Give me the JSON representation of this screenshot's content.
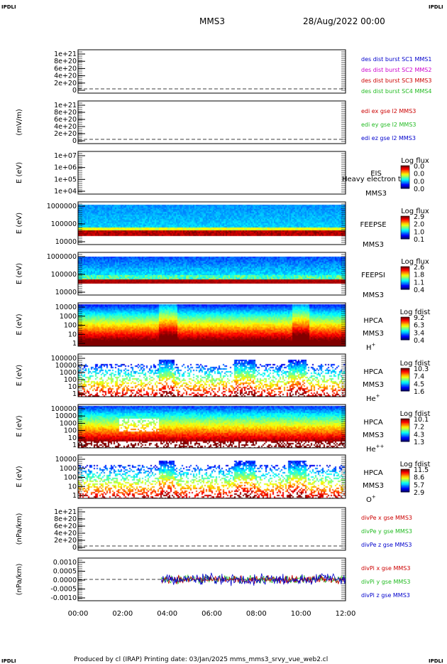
{
  "corner_marks": {
    "top_left": "IPDLI",
    "top_right": "IPDLI",
    "bottom_left": "IPDLI",
    "bottom_right": "IPDLI"
  },
  "header": {
    "spacecraft": "MMS3",
    "date": "28/Aug/2022 00:00"
  },
  "footer": {
    "text": "Produced by cl (IRAP)   Printing date: 03/Jan/2025   mms_mms3_srvy_vue_web2.cl"
  },
  "colors": {
    "red": "#cc0000",
    "green": "#22bb22",
    "blue": "#0000cc",
    "magenta": "#cc00cc",
    "accent": "#000080"
  },
  "chart_data": {
    "type": "stacked-panels",
    "x_axis": {
      "ticks": [
        "00:00",
        "02:00",
        "04:00",
        "06:00",
        "08:00",
        "10:00",
        "12:00"
      ],
      "range": [
        "00:00",
        "12:00"
      ]
    },
    "panels": [
      {
        "id": "p1",
        "kind": "line",
        "ylabel": "",
        "ytick_labels": [
          "1e+21",
          "8e+20",
          "6e+20",
          "4e+20",
          "2e+20",
          "0"
        ],
        "zero_dashed": true,
        "legend": [
          {
            "text": "des dist burst SC1 MMS1",
            "color": "#0000cc"
          },
          {
            "text": "des dist burst SC2 MMS2",
            "color": "#cc00cc"
          },
          {
            "text": "des dist burst SC3 MMS3",
            "color": "#cc0000"
          },
          {
            "text": "des dist burst SC4 MMS4",
            "color": "#22bb22"
          }
        ]
      },
      {
        "id": "p2",
        "kind": "line",
        "ylabel": "(mV/m)",
        "ytick_labels": [
          "1e+21",
          "8e+20",
          "6e+20",
          "4e+20",
          "2e+20",
          "0"
        ],
        "zero_dashed": true,
        "legend": [
          {
            "text": "edi ex gse l2 MMS3",
            "color": "#cc0000"
          },
          {
            "text": "edi ey gse l2 MMS3",
            "color": "#22bb22"
          },
          {
            "text": "edi ez gse l2 MMS3",
            "color": "#0000cc"
          }
        ]
      },
      {
        "id": "p3",
        "kind": "spectrogram",
        "ylabel": "E (eV)",
        "ytick_labels": [
          "1e+07",
          "1e+06",
          "1e+05",
          "1e+04"
        ],
        "instrument": [
          "EIS",
          "MMS3"
        ],
        "overlay_text": "Heavy electron t",
        "colorbar": {
          "title": "Log flux",
          "ticks": [
            "0.0",
            "0.0",
            "0.0",
            "0.0"
          ]
        },
        "data_style": "empty"
      },
      {
        "id": "p4",
        "kind": "spectrogram",
        "ylabel": "E (eV)",
        "ytick_labels": [
          "1000000",
          "100000",
          "10000"
        ],
        "instrument": [
          "FEEPSE",
          "MMS3"
        ],
        "colorbar": {
          "title": "Log flux",
          "ticks": [
            "2.9",
            "2.0",
            "1.0",
            "0.1"
          ]
        },
        "data_style": "feepse"
      },
      {
        "id": "p5",
        "kind": "spectrogram",
        "ylabel": "E (eV)",
        "ytick_labels": [
          "1000000",
          "100000",
          "10000"
        ],
        "instrument": [
          "FEEPSI",
          "MMS3"
        ],
        "colorbar": {
          "title": "Log flux",
          "ticks": [
            "2.6",
            "1.8",
            "1.1",
            "0.4"
          ]
        },
        "data_style": "feepsi"
      },
      {
        "id": "p6",
        "kind": "spectrogram",
        "ylabel": "E (eV)",
        "ytick_labels": [
          "10000",
          "1000",
          "100",
          "10",
          "1"
        ],
        "instrument": [
          "HPCA",
          "MMS3"
        ],
        "species": "H",
        "charge": "+",
        "colorbar": {
          "title": "Log fdist",
          "ticks": [
            "9.2",
            "6.3",
            "3.4",
            "0.4"
          ]
        },
        "data_style": "hplus"
      },
      {
        "id": "p7",
        "kind": "spectrogram",
        "ylabel": "E (eV)",
        "ytick_labels": [
          "100000",
          "10000",
          "1000",
          "100",
          "10",
          "1"
        ],
        "instrument": [
          "HPCA",
          "MMS3"
        ],
        "species": "He",
        "charge": "+",
        "colorbar": {
          "title": "Log fdist",
          "ticks": [
            "10.3",
            "7.4",
            "4.5",
            "1.6"
          ]
        },
        "data_style": "heplus"
      },
      {
        "id": "p8",
        "kind": "spectrogram",
        "ylabel": "E (eV)",
        "ytick_labels": [
          "100000",
          "10000",
          "1000",
          "100",
          "10",
          "1"
        ],
        "instrument": [
          "HPCA",
          "MMS3"
        ],
        "species": "He",
        "charge": "++",
        "colorbar": {
          "title": "Log fdist",
          "ticks": [
            "10.1",
            "7.2",
            "4.3",
            "1.3"
          ]
        },
        "data_style": "hepp"
      },
      {
        "id": "p9",
        "kind": "spectrogram",
        "ylabel": "E (eV)",
        "ytick_labels": [
          "10000",
          "1000",
          "100",
          "10",
          "1"
        ],
        "instrument": [
          "HPCA",
          "MMS3"
        ],
        "species": "O",
        "charge": "+",
        "colorbar": {
          "title": "Log fdist",
          "ticks": [
            "11.5",
            "8.6",
            "5.7",
            "2.9"
          ]
        },
        "data_style": "oplus"
      },
      {
        "id": "p10",
        "kind": "line",
        "ylabel": "(nPa/km)",
        "ytick_labels": [
          "1e+21",
          "8e+20",
          "6e+20",
          "4e+20",
          "2e+20",
          "0"
        ],
        "zero_dashed": true,
        "legend": [
          {
            "text": "divPe x gse MMS3",
            "color": "#cc0000"
          },
          {
            "text": "divPe y gse MMS3",
            "color": "#22bb22"
          },
          {
            "text": "divPe z gse MMS3",
            "color": "#0000cc"
          }
        ]
      },
      {
        "id": "p11",
        "kind": "line",
        "ylabel": "(nPa/km)",
        "ytick_labels": [
          "0.0010",
          "0.0005",
          "0.0000",
          "-0.0005",
          "-0.0010"
        ],
        "zero_dashed": true,
        "ylim": [
          -0.0012,
          0.0012
        ],
        "noise_start": "03:45",
        "noise_amplitude": 0.0004,
        "legend": [
          {
            "text": "divPi x gse MMS3",
            "color": "#cc0000"
          },
          {
            "text": "divPi y gse MMS3",
            "color": "#22bb22"
          },
          {
            "text": "divPi z gse MMS3",
            "color": "#0000cc"
          }
        ]
      }
    ]
  }
}
